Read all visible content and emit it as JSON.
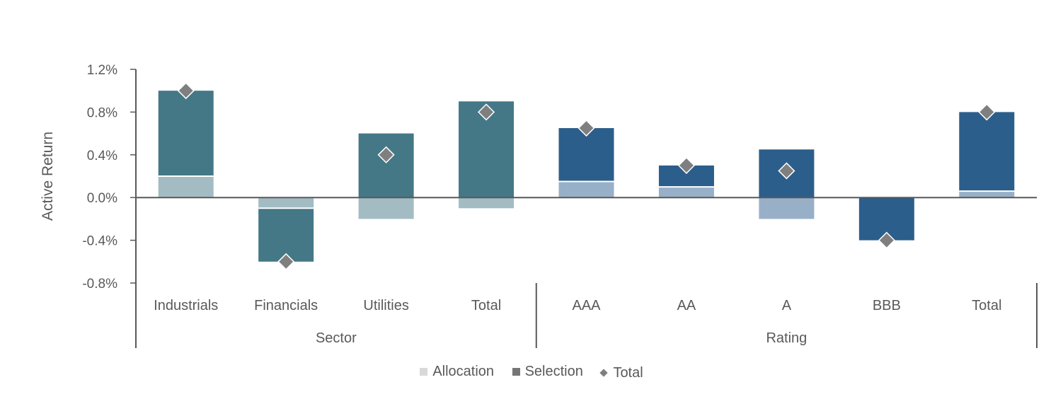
{
  "chart_data": {
    "type": "bar",
    "stacked": true,
    "ylabel": "Active Return",
    "ylim": [
      -0.8,
      1.2
    ],
    "yticks": [
      1.2,
      0.8,
      0.4,
      0.0,
      -0.4,
      -0.8
    ],
    "ytick_labels": [
      "1.2%",
      "0.8%",
      "0.4%",
      "0.0%",
      "-0.4%",
      "-0.8%"
    ],
    "groups": [
      {
        "label": "Sector",
        "categories": [
          "Industrials",
          "Financials",
          "Utilities",
          "Total"
        ],
        "allocation": [
          0.2,
          -0.1,
          -0.2,
          -0.1
        ],
        "selection": [
          0.8,
          -0.5,
          0.6,
          0.9
        ],
        "total": [
          1.0,
          -0.6,
          0.4,
          0.8
        ],
        "selection_color": "#447886",
        "allocation_color": "#A3BCC4"
      },
      {
        "label": "Rating",
        "categories": [
          "AAA",
          "AA",
          "A",
          "BBB",
          "Total"
        ],
        "allocation": [
          0.15,
          0.1,
          -0.2,
          0.0,
          0.06
        ],
        "selection": [
          0.5,
          0.2,
          0.45,
          -0.4,
          0.74
        ],
        "total": [
          0.65,
          0.3,
          0.25,
          -0.4,
          0.8
        ],
        "selection_color": "#2C5E8B",
        "allocation_color": "#98AFC8"
      }
    ],
    "series": [
      {
        "name": "Allocation",
        "legend_color": "#D9D9D9"
      },
      {
        "name": "Selection",
        "legend_color": "#767676"
      },
      {
        "name": "Total",
        "legend_color": "#7F7F7F",
        "marker": "diamond"
      }
    ],
    "grid": false,
    "legend_position": "bottom"
  }
}
